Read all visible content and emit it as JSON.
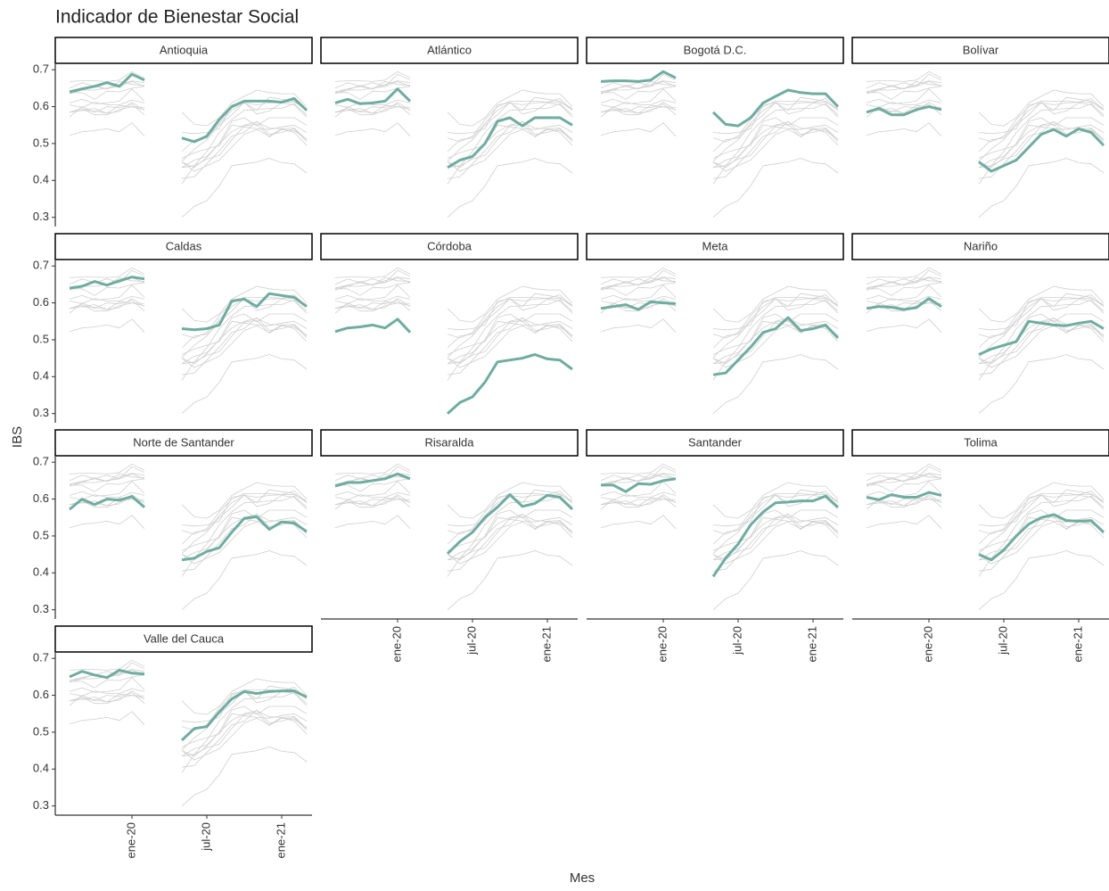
{
  "chart_data": {
    "type": "line",
    "title": "Indicador de Bienestar Social",
    "x_label": "Mes",
    "y_label": "IBS",
    "categories": [
      null,
      null,
      null,
      null,
      null,
      "ene-20",
      null,
      null,
      null,
      null,
      null,
      "jul-20",
      null,
      null,
      null,
      null,
      null,
      "ene-21",
      null,
      null
    ],
    "ylim": [
      0.275,
      0.715
    ],
    "yticks": [
      0.3,
      0.4,
      0.5,
      0.6,
      0.7
    ],
    "context_color": "#cfcfcf",
    "series": [
      {
        "name": "Antioquia",
        "color": "#6fad9e",
        "values": [
          0.64,
          0.648,
          0.655,
          0.665,
          0.655,
          0.688,
          0.672,
          null,
          null,
          0.515,
          0.505,
          0.52,
          0.565,
          0.6,
          0.615,
          0.615,
          0.615,
          0.612,
          0.622,
          0.59
        ]
      },
      {
        "name": "Atlántico",
        "color": "#6fad9e",
        "values": [
          0.61,
          0.62,
          0.608,
          0.61,
          0.615,
          0.648,
          0.615,
          null,
          null,
          0.435,
          0.455,
          0.465,
          0.5,
          0.56,
          0.57,
          0.548,
          0.57,
          0.57,
          0.57,
          0.55
        ]
      },
      {
        "name": "Bogotá D.C.",
        "color": "#6fad9e",
        "values": [
          0.668,
          0.67,
          0.67,
          0.668,
          0.672,
          0.695,
          0.678,
          null,
          null,
          0.585,
          0.552,
          0.548,
          0.57,
          0.61,
          0.628,
          0.645,
          0.638,
          0.635,
          0.635,
          0.6
        ]
      },
      {
        "name": "Bolívar",
        "color": "#6fad9e",
        "values": [
          0.585,
          0.595,
          0.578,
          0.578,
          0.592,
          0.6,
          0.592,
          null,
          null,
          0.45,
          0.425,
          0.44,
          0.455,
          0.49,
          0.525,
          0.538,
          0.52,
          0.54,
          0.53,
          0.495
        ]
      },
      {
        "name": "Caldas",
        "color": "#6fad9e",
        "values": [
          0.64,
          0.645,
          0.658,
          0.648,
          0.66,
          0.67,
          0.665,
          null,
          null,
          0.53,
          0.527,
          0.53,
          0.54,
          0.605,
          0.61,
          0.59,
          0.625,
          0.62,
          0.615,
          0.59
        ]
      },
      {
        "name": "Córdoba",
        "color": "#6fad9e",
        "values": [
          0.522,
          0.532,
          0.535,
          0.54,
          0.532,
          0.556,
          0.52,
          null,
          null,
          0.3,
          0.33,
          0.345,
          0.385,
          0.44,
          0.445,
          0.45,
          0.46,
          0.448,
          0.445,
          0.42
        ]
      },
      {
        "name": "Meta",
        "color": "#6fad9e",
        "values": [
          0.585,
          0.59,
          0.595,
          0.582,
          0.603,
          0.6,
          0.598,
          null,
          null,
          0.405,
          0.41,
          0.445,
          0.48,
          0.52,
          0.53,
          0.56,
          0.525,
          0.53,
          0.54,
          0.505
        ]
      },
      {
        "name": "Nariño",
        "color": "#6fad9e",
        "values": [
          0.585,
          0.59,
          0.588,
          0.582,
          0.587,
          0.612,
          0.59,
          null,
          null,
          0.46,
          0.475,
          0.485,
          0.495,
          0.55,
          0.545,
          0.54,
          0.538,
          0.545,
          0.55,
          0.53
        ]
      },
      {
        "name": "Norte de Santander",
        "color": "#6fad9e",
        "values": [
          0.572,
          0.6,
          0.585,
          0.6,
          0.597,
          0.607,
          0.578,
          null,
          null,
          0.435,
          0.44,
          0.458,
          0.468,
          0.51,
          0.548,
          0.552,
          0.518,
          0.538,
          0.535,
          0.512
        ]
      },
      {
        "name": "Risaralda",
        "color": "#6fad9e",
        "values": [
          0.635,
          0.645,
          0.645,
          0.65,
          0.655,
          0.668,
          0.655,
          null,
          null,
          0.452,
          0.485,
          0.51,
          0.55,
          0.578,
          0.612,
          0.58,
          0.588,
          0.61,
          0.605,
          0.572
        ]
      },
      {
        "name": "Santander",
        "color": "#6fad9e",
        "values": [
          0.638,
          0.638,
          0.62,
          0.642,
          0.64,
          0.65,
          0.655,
          null,
          null,
          0.39,
          0.44,
          0.478,
          0.53,
          0.565,
          0.59,
          0.592,
          0.595,
          0.595,
          0.608,
          0.578
        ]
      },
      {
        "name": "Tolima",
        "color": "#6fad9e",
        "values": [
          0.605,
          0.598,
          0.612,
          0.605,
          0.605,
          0.618,
          0.61,
          null,
          null,
          0.45,
          0.435,
          0.462,
          0.5,
          0.532,
          0.55,
          0.558,
          0.542,
          0.54,
          0.542,
          0.51
        ]
      },
      {
        "name": "Valle del Cauca",
        "color": "#6fad9e",
        "values": [
          0.65,
          0.665,
          0.655,
          0.648,
          0.668,
          0.66,
          0.658,
          null,
          null,
          0.478,
          0.51,
          0.515,
          0.555,
          0.59,
          0.61,
          0.605,
          0.61,
          0.612,
          0.612,
          0.595
        ]
      }
    ]
  }
}
